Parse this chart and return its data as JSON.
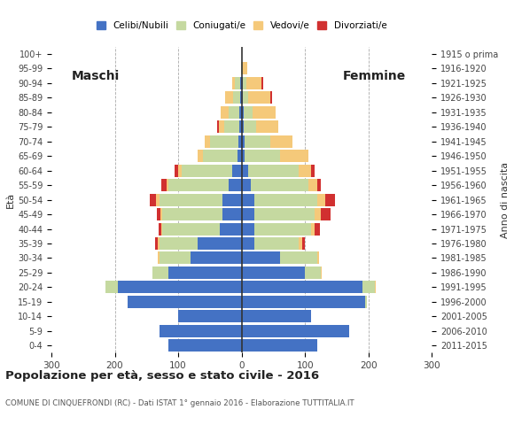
{
  "age_groups": [
    "0-4",
    "5-9",
    "10-14",
    "15-19",
    "20-24",
    "25-29",
    "30-34",
    "35-39",
    "40-44",
    "45-49",
    "50-54",
    "55-59",
    "60-64",
    "65-69",
    "70-74",
    "75-79",
    "80-84",
    "85-89",
    "90-94",
    "95-99",
    "100+"
  ],
  "birth_years": [
    "2011-2015",
    "2006-2010",
    "2001-2005",
    "1996-2000",
    "1991-1995",
    "1986-1990",
    "1981-1985",
    "1976-1980",
    "1971-1975",
    "1966-1970",
    "1961-1965",
    "1956-1960",
    "1951-1955",
    "1946-1950",
    "1941-1945",
    "1936-1940",
    "1931-1935",
    "1926-1930",
    "1921-1925",
    "1916-1920",
    "1915 o prima"
  ],
  "male_celibi": [
    115,
    130,
    100,
    180,
    195,
    115,
    80,
    70,
    35,
    30,
    30,
    20,
    15,
    6,
    5,
    3,
    3,
    2,
    2,
    0,
    0
  ],
  "male_coniugati": [
    0,
    0,
    0,
    0,
    20,
    25,
    50,
    60,
    90,
    95,
    100,
    95,
    80,
    55,
    45,
    25,
    18,
    12,
    8,
    1,
    0
  ],
  "male_vedovi": [
    0,
    0,
    0,
    0,
    0,
    0,
    2,
    2,
    2,
    3,
    5,
    3,
    5,
    8,
    8,
    8,
    12,
    12,
    5,
    0,
    0
  ],
  "male_divorziati": [
    0,
    0,
    0,
    0,
    0,
    0,
    0,
    5,
    4,
    5,
    10,
    8,
    5,
    0,
    0,
    3,
    0,
    0,
    0,
    0,
    0
  ],
  "female_celibi": [
    120,
    170,
    110,
    195,
    190,
    100,
    60,
    20,
    20,
    20,
    20,
    15,
    10,
    5,
    5,
    3,
    3,
    2,
    2,
    0,
    0
  ],
  "female_coniugati": [
    0,
    0,
    0,
    2,
    20,
    25,
    60,
    70,
    90,
    95,
    100,
    90,
    80,
    55,
    40,
    20,
    15,
    8,
    5,
    1,
    0
  ],
  "female_vedovi": [
    0,
    0,
    0,
    0,
    2,
    2,
    2,
    5,
    5,
    10,
    12,
    15,
    20,
    45,
    35,
    35,
    35,
    35,
    25,
    8,
    0
  ],
  "female_divorziati": [
    0,
    0,
    0,
    0,
    0,
    0,
    0,
    5,
    8,
    15,
    15,
    5,
    5,
    0,
    0,
    0,
    0,
    3,
    2,
    0,
    0
  ],
  "color_celibi": "#4472c4",
  "color_coniugati": "#c5d9a0",
  "color_vedovi": "#f5c97a",
  "color_divorziati": "#d13030",
  "title": "Popolazione per età, sesso e stato civile - 2016",
  "subtitle": "COMUNE DI CINQUEFRONDI (RC) - Dati ISTAT 1° gennaio 2016 - Elaborazione TUTTITALIA.IT",
  "xlabel_male": "Maschi",
  "xlabel_female": "Femmine",
  "ylabel": "Età",
  "ylabel_right": "Anno di nascita",
  "xlim": 300,
  "legend_labels": [
    "Celibi/Nubili",
    "Coniugati/e",
    "Vedovi/e",
    "Divorziati/e"
  ],
  "bg_color": "#ffffff"
}
